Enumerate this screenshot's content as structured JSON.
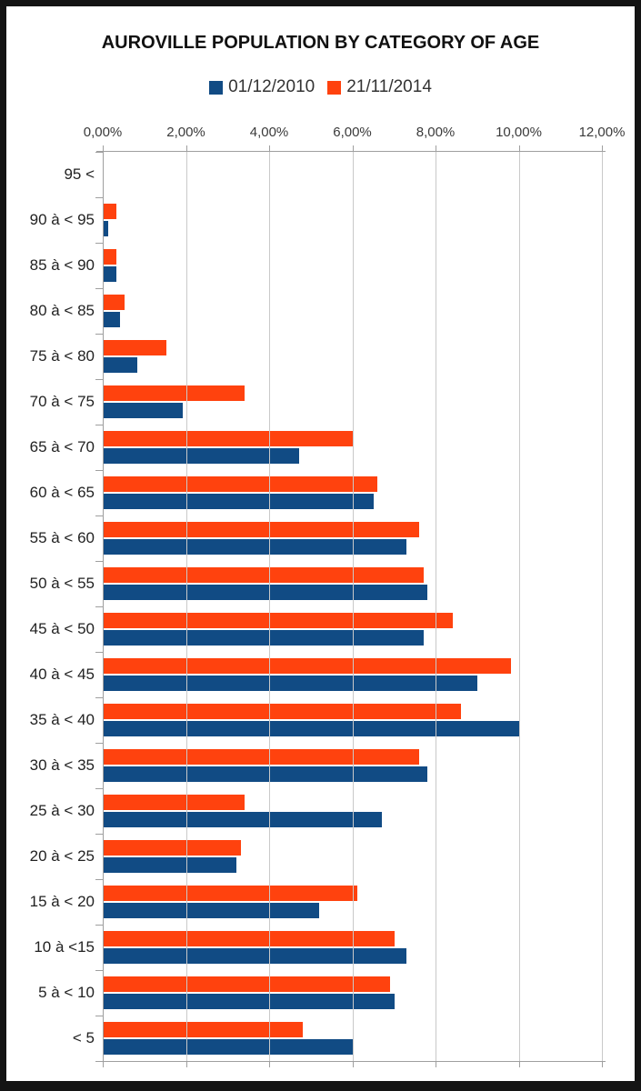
{
  "chart": {
    "frame_color": "#141414",
    "background": "#ffffff"
  },
  "chart_data": {
    "type": "bar",
    "orientation": "horizontal",
    "title": "AUROVILLE POPULATION BY CATEGORY OF AGE",
    "xlabel": "",
    "ylabel": "",
    "xlim": [
      0,
      12
    ],
    "grid": true,
    "legend_position": "top",
    "x_tick_values": [
      0,
      2,
      4,
      6,
      8,
      10,
      12
    ],
    "x_tick_labels": [
      "0,00%",
      "2,00%",
      "4,00%",
      "6,00%",
      "8,00%",
      "10,00%",
      "12,00%"
    ],
    "categories": [
      "95 <",
      "90 à < 95",
      "85 à < 90",
      "80 à < 85",
      "75 à < 80",
      "70 à < 75",
      "65 à < 70",
      "60 à < 65",
      "55 à < 60",
      "50 à < 55",
      "45 à < 50",
      "40 à < 45",
      "35 à < 40",
      "30 à < 35",
      "25 à < 30",
      "20 à < 25",
      "15 à < 20",
      "10 à <15",
      "5 à < 10",
      "< 5"
    ],
    "series": [
      {
        "name": "01/12/2010",
        "color": "#114B84",
        "unit": "%",
        "values": [
          0,
          0.1,
          0.3,
          0.4,
          0.8,
          1.9,
          4.7,
          6.5,
          7.3,
          7.8,
          7.7,
          9.0,
          10.0,
          7.8,
          6.7,
          3.2,
          5.2,
          7.3,
          7.0,
          6.0
        ]
      },
      {
        "name": "21/11/2014",
        "color": "#FF420E",
        "unit": "%",
        "values": [
          0,
          0.3,
          0.3,
          0.5,
          1.5,
          3.4,
          6.0,
          6.6,
          7.6,
          7.7,
          8.4,
          9.8,
          8.6,
          7.6,
          3.4,
          3.3,
          6.1,
          7.0,
          6.9,
          4.8
        ]
      }
    ]
  }
}
